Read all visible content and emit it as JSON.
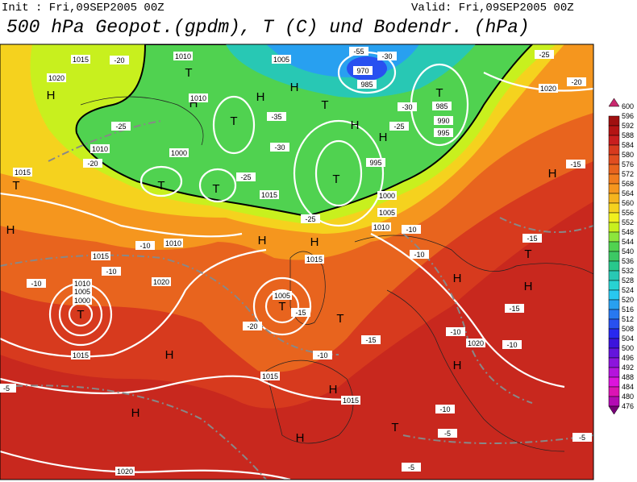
{
  "header": {
    "init": "Init : Fri,09SEP2005 00Z",
    "valid": "Valid: Fri,09SEP2005 00Z",
    "title": "500 hPa Geopot.(gpdm), T (C) und Bodendr. (hPa)"
  },
  "pressure_centers": [
    "H",
    "H",
    "T",
    "T",
    "H",
    "H",
    "H",
    "T",
    "H",
    "H",
    "T",
    "T",
    "H",
    "H",
    "T",
    "T",
    "T",
    "T",
    "H",
    "H",
    "H",
    "T",
    "H",
    "T",
    "H",
    "T",
    "T",
    "H",
    "H",
    "H"
  ],
  "isobar_labels": [
    "1010",
    "1005",
    "1000",
    "1015",
    "1020",
    "1015",
    "1015",
    "1010",
    "1015",
    "1020",
    "1020",
    "1015",
    "985",
    "990",
    "995",
    "1000",
    "1005",
    "1010",
    "1020",
    "1015",
    "1020",
    "1010",
    "1005",
    "985",
    "970",
    "1015",
    "1010",
    "1000",
    "995",
    "1005",
    "1010",
    "1015"
  ],
  "isotherm_labels": [
    "-20",
    "-25",
    "-20",
    "-10",
    "-10",
    "-10",
    "-20",
    "-15",
    "-10",
    "-15",
    "-10",
    "-15",
    "-10",
    "-15",
    "-10",
    "-10",
    "-5",
    "-10",
    "-5",
    "-5",
    "-5",
    "-15",
    "-20",
    "-25",
    "-30",
    "-25",
    "-30",
    "-35",
    "-25",
    "-30",
    "-55",
    "-25"
  ],
  "colorbar": {
    "levels": [
      600,
      596,
      592,
      588,
      584,
      580,
      576,
      572,
      568,
      564,
      560,
      556,
      552,
      548,
      544,
      540,
      536,
      532,
      528,
      524,
      520,
      516,
      512,
      508,
      504,
      500,
      496,
      492,
      488,
      484,
      480,
      476
    ],
    "colors": [
      "#c8286e",
      "#a01010",
      "#b41414",
      "#c81e1e",
      "#d73a1e",
      "#e04e20",
      "#e8641e",
      "#f07c1e",
      "#f5961e",
      "#f5b41e",
      "#f5d21e",
      "#f0f01e",
      "#c8f01e",
      "#8ce63c",
      "#50d250",
      "#3cc864",
      "#28c88c",
      "#28c8b4",
      "#28d2d2",
      "#28c8f0",
      "#28a0f0",
      "#2878f0",
      "#2850f0",
      "#2828f0",
      "#3c14dc",
      "#6414dc",
      "#8c14dc",
      "#b414dc",
      "#dc14dc",
      "#dc14b4",
      "#b40ab4",
      "#780078"
    ]
  }
}
